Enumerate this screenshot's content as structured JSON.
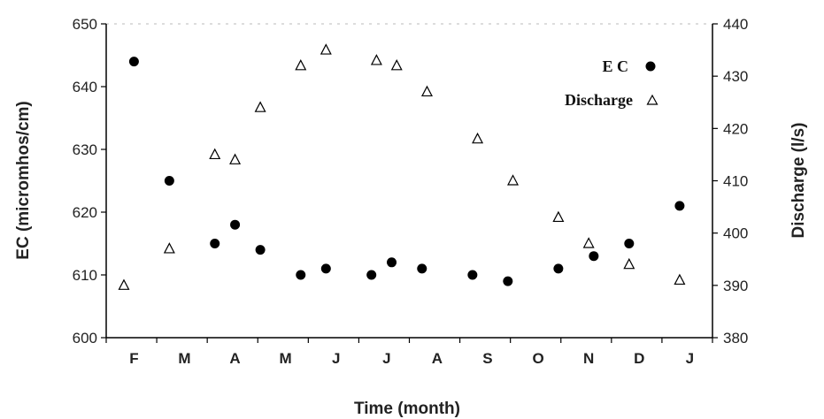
{
  "chart_data": {
    "type": "scatter",
    "xlabel": "Time (month)",
    "categories": [
      "F",
      "M",
      "A",
      "M",
      "J",
      "J",
      "A",
      "S",
      "O",
      "N",
      "D",
      "J"
    ],
    "ylabel": "EC (micromhos/cm)",
    "ylim": [
      600,
      650
    ],
    "yticks": [
      600,
      610,
      620,
      630,
      640,
      650
    ],
    "y2label": "Discharge (l/s)",
    "y2lim": [
      380,
      440
    ],
    "y2ticks": [
      380,
      390,
      400,
      410,
      420,
      430,
      440
    ],
    "legend_position": "top-right",
    "grid": false,
    "series": [
      {
        "name": "E C",
        "axis": "left",
        "marker": "filled-circle",
        "color": "#000000",
        "points": [
          {
            "x": 0.0,
            "y": 644
          },
          {
            "x": 0.7,
            "y": 625
          },
          {
            "x": 1.6,
            "y": 615
          },
          {
            "x": 2.0,
            "y": 618
          },
          {
            "x": 2.5,
            "y": 614
          },
          {
            "x": 3.3,
            "y": 610
          },
          {
            "x": 3.8,
            "y": 611
          },
          {
            "x": 4.7,
            "y": 610
          },
          {
            "x": 5.1,
            "y": 612
          },
          {
            "x": 5.7,
            "y": 611
          },
          {
            "x": 6.7,
            "y": 610
          },
          {
            "x": 7.4,
            "y": 609
          },
          {
            "x": 8.4,
            "y": 611
          },
          {
            "x": 9.1,
            "y": 613
          },
          {
            "x": 9.8,
            "y": 615
          },
          {
            "x": 10.8,
            "y": 621
          }
        ]
      },
      {
        "name": "Discharge",
        "axis": "right",
        "marker": "open-triangle",
        "color": "#000000",
        "points": [
          {
            "x": -0.2,
            "y": 390
          },
          {
            "x": 0.7,
            "y": 397
          },
          {
            "x": 1.6,
            "y": 415
          },
          {
            "x": 2.0,
            "y": 414
          },
          {
            "x": 2.5,
            "y": 424
          },
          {
            "x": 3.3,
            "y": 432
          },
          {
            "x": 3.8,
            "y": 435
          },
          {
            "x": 4.8,
            "y": 433
          },
          {
            "x": 5.2,
            "y": 432
          },
          {
            "x": 5.8,
            "y": 427
          },
          {
            "x": 6.8,
            "y": 418
          },
          {
            "x": 7.5,
            "y": 410
          },
          {
            "x": 8.4,
            "y": 403
          },
          {
            "x": 9.0,
            "y": 398
          },
          {
            "x": 9.8,
            "y": 394
          },
          {
            "x": 10.8,
            "y": 391
          }
        ]
      }
    ]
  }
}
